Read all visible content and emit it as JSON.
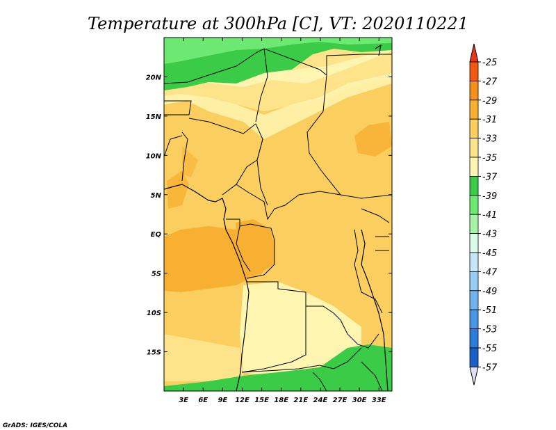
{
  "title": "Temperature at 300hPa [C], VT: 2020110221",
  "credit": "GrADS: IGES/COLA",
  "map": {
    "lon_range": [
      0,
      35
    ],
    "lat_range": [
      -20,
      25
    ],
    "x_ticks": [
      "3E",
      "6E",
      "9E",
      "12E",
      "15E",
      "18E",
      "21E",
      "24E",
      "27E",
      "30E",
      "33E"
    ],
    "x_tick_values": [
      3,
      6,
      9,
      12,
      15,
      18,
      21,
      24,
      27,
      30,
      33
    ],
    "y_ticks": [
      "20N",
      "15N",
      "10N",
      "5N",
      "EQ",
      "5S",
      "10S",
      "15S"
    ],
    "y_tick_values": [
      20,
      15,
      10,
      5,
      0,
      -5,
      -10,
      -15
    ]
  },
  "colorbar": {
    "labels": [
      "-25",
      "-27",
      "-29",
      "-31",
      "-33",
      "-35",
      "-37",
      "-39",
      "-41",
      "-43",
      "-45",
      "-47",
      "-49",
      "-51",
      "-53",
      "-55",
      "-57"
    ],
    "colors": [
      "#f05a10",
      "#f5901e",
      "#f7b032",
      "#fbcf5f",
      "#fde48a",
      "#fdf5b0",
      "#3acc46",
      "#6de873",
      "#a6f3a6",
      "#d9fbe8",
      "#c4e6f7",
      "#98cdf5",
      "#70b4ef",
      "#4a97e6",
      "#2d7bdb",
      "#1a5ec7",
      "#0c3ea8",
      "#0a1a73"
    ],
    "top_color": "#e8361a",
    "bottom_color": "#e0e0f5"
  }
}
